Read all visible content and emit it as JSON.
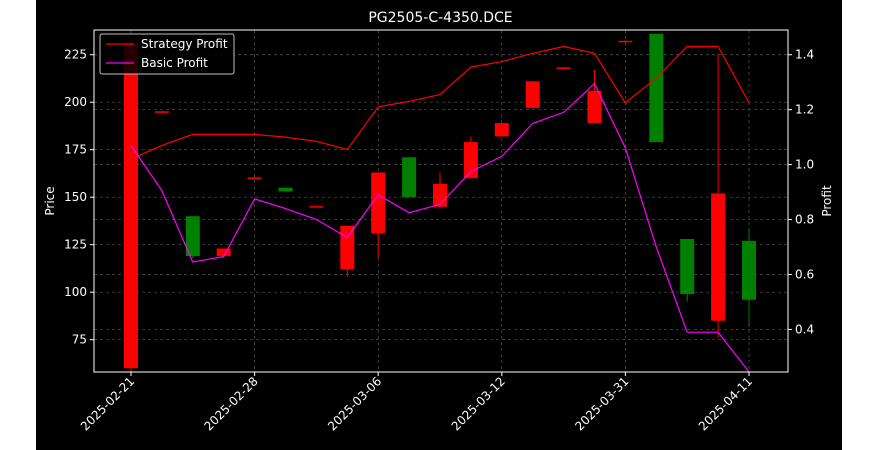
{
  "chart_data": {
    "type": "candlestick",
    "title": "PG2505-C-4350.DCE",
    "xlabel": "",
    "ylabel_left": "Price",
    "ylabel_right": "Profit",
    "ylim_left": [
      58,
      238
    ],
    "ylim_right": [
      0.245,
      1.49
    ],
    "yticks_left": [
      75,
      100,
      125,
      150,
      175,
      200,
      225
    ],
    "yticks_right": [
      0.4,
      0.6,
      0.8,
      1.0,
      1.2,
      1.4
    ],
    "ytick_labels_left": [
      "75",
      "100",
      "125",
      "150",
      "175",
      "200",
      "225"
    ],
    "ytick_labels_right": [
      "0.4",
      "0.6",
      "0.8",
      "1.0",
      "1.2",
      "1.4"
    ],
    "xtick_indices": [
      0,
      4,
      8,
      12,
      16,
      20
    ],
    "xtick_labels": [
      "2025-02-21",
      "2025-02-28",
      "2025-03-06",
      "2025-03-12",
      "2025-03-31",
      "2025-04-11"
    ],
    "grid": true,
    "legend_position": "top-left",
    "colors": {
      "up": "#008000",
      "down": "#ff0000",
      "strategy": "#ff0000",
      "basic": "#ff00ff",
      "background": "#000000"
    },
    "candles": [
      {
        "open": 231,
        "close": 60,
        "high": 233,
        "low": 58
      },
      {
        "open": 195.2,
        "close": 194.8,
        "high": 195.4,
        "low": 194.6
      },
      {
        "open": 119,
        "close": 140,
        "high": 140,
        "low": 118
      },
      {
        "open": 123,
        "close": 119,
        "high": 123,
        "low": 118
      },
      {
        "open": 160.4,
        "close": 160,
        "high": 160.6,
        "low": 159.8
      },
      {
        "open": 153,
        "close": 155,
        "high": 155,
        "low": 153
      },
      {
        "open": 145.3,
        "close": 144.9,
        "high": 145.5,
        "low": 144.7
      },
      {
        "open": 135,
        "close": 112,
        "high": 135,
        "low": 108
      },
      {
        "open": 163,
        "close": 131,
        "high": 163,
        "low": 118
      },
      {
        "open": 150,
        "close": 171,
        "high": 171,
        "low": 150
      },
      {
        "open": 157,
        "close": 145,
        "high": 163,
        "low": 144
      },
      {
        "open": 179,
        "close": 160,
        "high": 182,
        "low": 160
      },
      {
        "open": 189,
        "close": 182,
        "high": 189,
        "low": 182
      },
      {
        "open": 211,
        "close": 197,
        "high": 211,
        "low": 197
      },
      {
        "open": 218.3,
        "close": 217.8,
        "high": 218.5,
        "low": 217.6
      },
      {
        "open": 206,
        "close": 189,
        "high": 217,
        "low": 189
      },
      {
        "open": 232.3,
        "close": 231.8,
        "high": 232.5,
        "low": 231.6
      },
      {
        "open": 179,
        "close": 236,
        "high": 236,
        "low": 179
      },
      {
        "open": 99,
        "close": 128,
        "high": 128,
        "low": 95
      },
      {
        "open": 152,
        "close": 85,
        "high": 225,
        "low": 76
      },
      {
        "open": 96,
        "close": 127,
        "high": 133,
        "low": 82
      }
    ],
    "series": [
      {
        "name": "Strategy Profit",
        "axis": "right",
        "values": [
          1.02,
          1.07,
          1.11,
          1.11,
          1.11,
          1.1,
          1.085,
          1.055,
          1.21,
          1.23,
          1.255,
          1.355,
          1.375,
          1.405,
          1.43,
          1.405,
          1.225,
          1.315,
          1.43,
          1.43,
          1.225
        ]
      },
      {
        "name": "Basic Profit",
        "axis": "right",
        "values": [
          1.07,
          0.905,
          0.645,
          0.665,
          0.875,
          0.84,
          0.8,
          0.735,
          0.89,
          0.825,
          0.855,
          0.975,
          1.03,
          1.15,
          1.19,
          1.295,
          1.06,
          0.7,
          0.39,
          0.39,
          0.245
        ]
      }
    ]
  }
}
